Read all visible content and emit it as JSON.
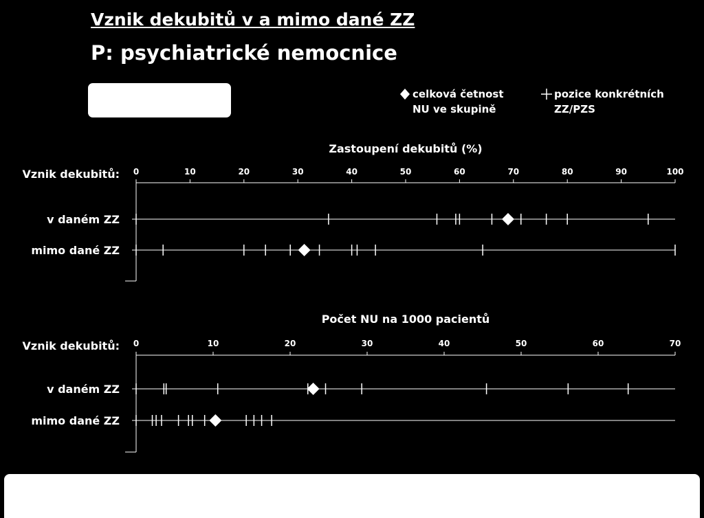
{
  "title": "Vznik dekubitů v a mimo dané ZZ",
  "subtitle": "P: psychiatrické nemocnice",
  "legend": {
    "overall_label_line1": "celková četnost",
    "overall_label_line2": "NU ve skupině",
    "position_label_line1": "pozice konkrétních",
    "position_label_line2": "ZZ/PZS"
  },
  "colors": {
    "background": "#000000",
    "foreground": "#ffffff"
  },
  "chart_data": [
    {
      "type": "scatter",
      "title": "Zastoupení dekubitů (%)",
      "row_header": "Vznik dekubitů:",
      "xlim": [
        0,
        100
      ],
      "xticks": [
        0,
        10,
        20,
        30,
        40,
        50,
        60,
        70,
        80,
        90,
        100
      ],
      "categories": [
        "v daném ZZ",
        "mimo dané ZZ"
      ],
      "series": [
        {
          "category": "v daném ZZ",
          "overall": 69,
          "positions": [
            0,
            35.7,
            55.8,
            59.3,
            60.0,
            66.0,
            71.4,
            76.1,
            80.0,
            95.0
          ]
        },
        {
          "category": "mimo dané ZZ",
          "overall": 31.2,
          "positions": [
            0,
            5.0,
            20.0,
            24.0,
            28.6,
            34.0,
            40.0,
            41.0,
            44.4,
            64.3,
            100
          ]
        }
      ]
    },
    {
      "type": "scatter",
      "title": "Počet NU na 1000 pacientů",
      "row_header": "Vznik dekubitů:",
      "xlim": [
        0,
        70
      ],
      "xticks": [
        0,
        10,
        20,
        30,
        40,
        50,
        60,
        70
      ],
      "categories": [
        "v daném ZZ",
        "mimo dané ZZ"
      ],
      "series": [
        {
          "category": "v daném ZZ",
          "overall": 23.0,
          "positions": [
            0,
            3.6,
            3.9,
            10.6,
            22.3,
            24.6,
            29.3,
            45.5,
            56.1,
            63.9
          ]
        },
        {
          "category": "mimo dané ZZ",
          "overall": 10.3,
          "positions": [
            0,
            2.1,
            2.6,
            3.3,
            5.5,
            6.8,
            7.3,
            8.9,
            14.3,
            15.3,
            16.3,
            17.6
          ]
        }
      ]
    }
  ]
}
